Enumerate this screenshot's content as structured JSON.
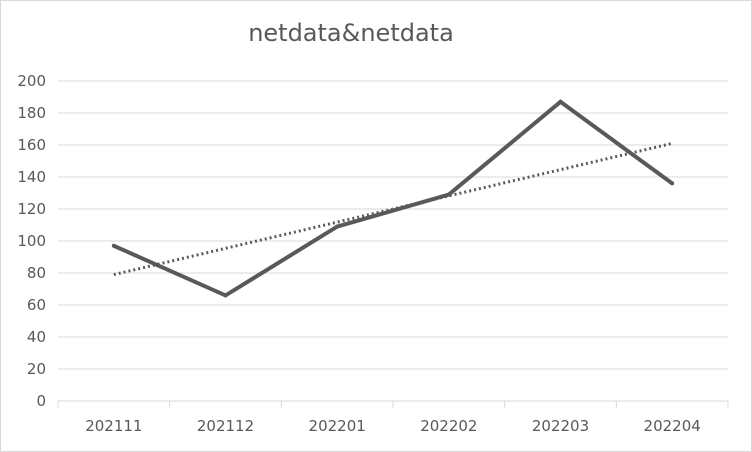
{
  "chart_data": {
    "type": "line",
    "title": "netdata&netdata",
    "categories": [
      "202111",
      "202112",
      "202201",
      "202202",
      "202203",
      "202204"
    ],
    "series": [
      {
        "values": [
          97,
          66,
          109,
          129,
          187,
          136
        ],
        "color": "#595959"
      }
    ],
    "trendline": {
      "kind": "linear",
      "style": "dotted",
      "color": "#595959",
      "start": 79,
      "end": 161
    },
    "ylim": [
      0,
      200
    ],
    "yticks": [
      0,
      20,
      40,
      60,
      80,
      100,
      120,
      140,
      160,
      180,
      200
    ],
    "grid": true,
    "legend": "none",
    "gridline_color": "#d9d9d9"
  }
}
